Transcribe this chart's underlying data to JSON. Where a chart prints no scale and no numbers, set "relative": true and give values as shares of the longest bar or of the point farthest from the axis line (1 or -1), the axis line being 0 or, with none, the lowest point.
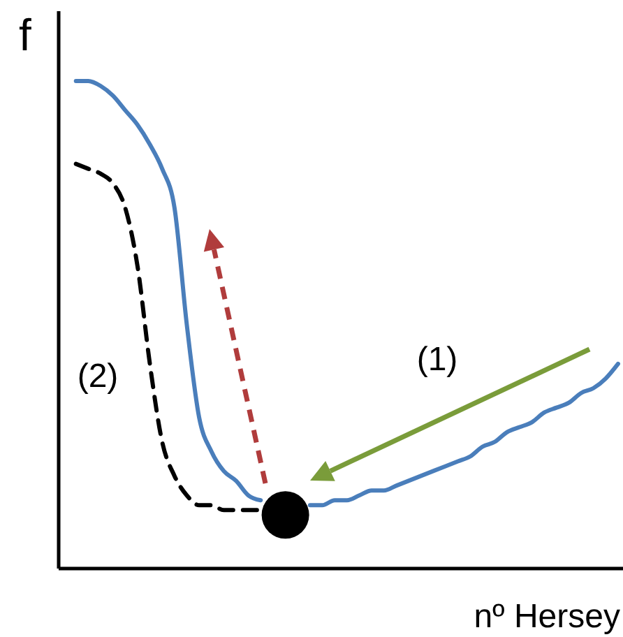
{
  "chart_data": {
    "type": "line",
    "relative": true,
    "xlabel": "nº Hersey",
    "ylabel": "f",
    "annotations": [
      "(1)",
      "(2)"
    ],
    "categories": [
      null,
      null,
      null,
      null,
      null,
      null,
      null,
      null,
      null,
      null,
      null,
      null,
      null,
      null,
      null,
      null,
      null,
      null,
      null,
      null,
      null,
      null,
      null,
      null,
      null,
      null,
      null,
      null,
      null,
      null,
      null,
      null,
      null,
      null,
      null,
      null,
      null,
      null,
      null,
      null,
      null,
      null,
      null,
      null,
      null,
      null
    ],
    "series": [
      {
        "color": "#4a7ebb",
        "values": [
          null,
          1.0,
          1.0,
          0.99,
          0.97,
          0.94,
          0.91,
          0.87,
          0.82,
          0.74,
          0.5,
          0.31,
          0.24,
          0.2,
          0.18,
          0.15,
          0.14,
          null,
          null,
          null,
          0.13,
          0.13,
          0.14,
          0.14,
          0.15,
          0.16,
          0.16,
          0.17,
          0.18,
          0.19,
          0.2,
          0.21,
          0.22,
          0.23,
          0.25,
          0.26,
          0.28,
          0.29,
          0.3,
          0.32,
          0.33,
          0.34,
          0.36,
          0.37,
          0.39,
          0.42
        ]
      },
      {
        "color": "#000000",
        "line_style": "dashed",
        "values": [
          null,
          0.83,
          0.82,
          0.81,
          0.79,
          0.74,
          0.62,
          0.42,
          0.26,
          0.19,
          0.15,
          0.13,
          0.13,
          0.12,
          0.12,
          0.12,
          0.12,
          null,
          null,
          null,
          null,
          null,
          null,
          null,
          null,
          null,
          null,
          null,
          null,
          null,
          null,
          null,
          null,
          null,
          null,
          null,
          null,
          null,
          null,
          null,
          null,
          null,
          null,
          null,
          null,
          null
        ]
      },
      {
        "color": "#000000",
        "marker": "circle",
        "values": [
          null,
          null,
          null,
          null,
          null,
          null,
          null,
          null,
          null,
          null,
          null,
          null,
          null,
          null,
          null,
          null,
          null,
          null,
          0.11,
          null,
          null,
          null,
          null,
          null,
          null,
          null,
          null,
          null,
          null,
          null,
          null,
          null,
          null,
          null,
          null,
          null,
          null,
          null,
          null,
          null,
          null,
          null,
          null,
          null,
          null,
          null
        ]
      }
    ]
  }
}
